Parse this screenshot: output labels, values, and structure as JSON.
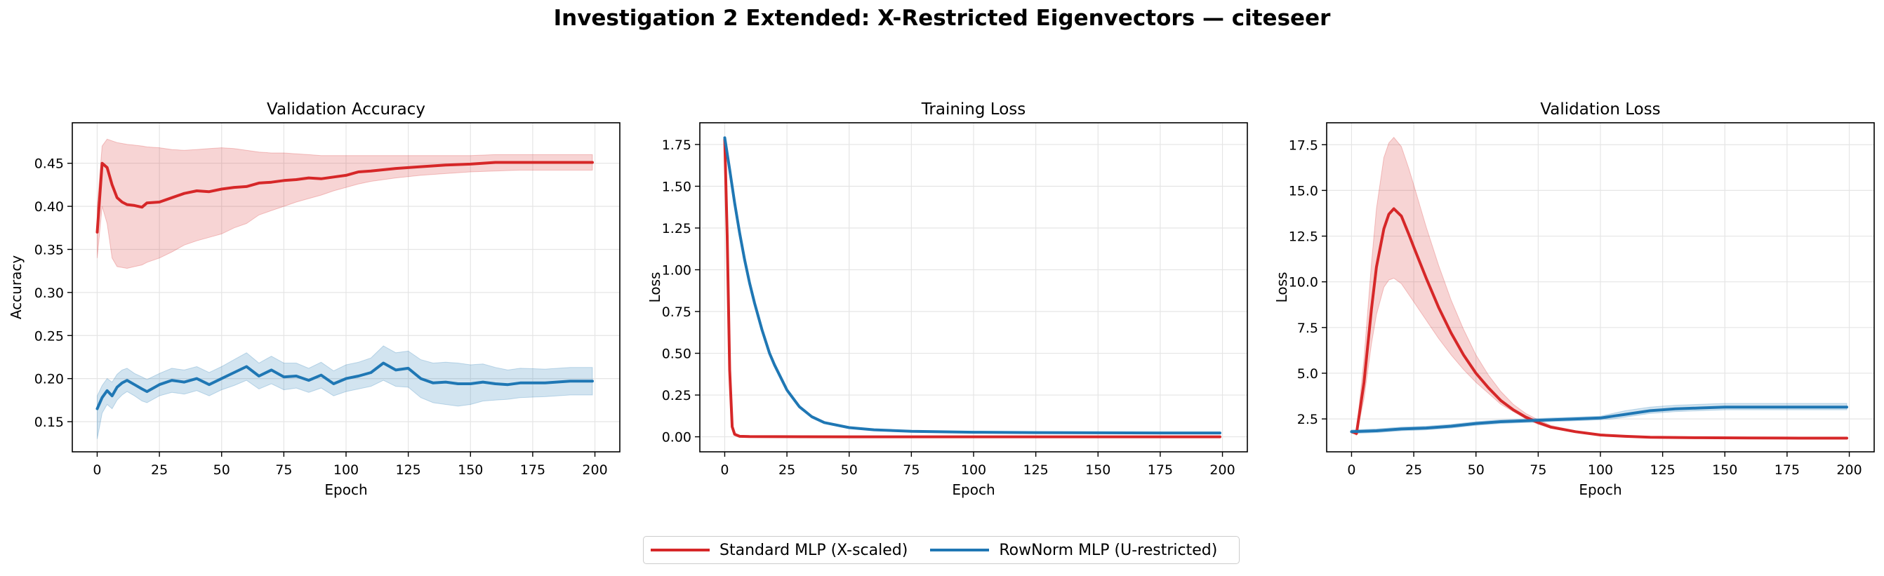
{
  "figure": {
    "suptitle": "Investigation 2 Extended: X-Restricted Eigenvectors — citeseer"
  },
  "legend": [
    {
      "name": "Standard MLP (X-scaled)",
      "color": "#d62728"
    },
    {
      "name": "RowNorm MLP (U-restricted)",
      "color": "#1f77b4"
    }
  ],
  "chart_data": [
    {
      "type": "line",
      "title": "Validation Accuracy",
      "xlabel": "Epoch",
      "ylabel": "Accuracy",
      "xlim": [
        -10,
        210
      ],
      "ylim": [
        0.115,
        0.497
      ],
      "xticks": [
        0,
        25,
        50,
        75,
        100,
        125,
        150,
        175,
        200
      ],
      "yticks": [
        0.15,
        0.2,
        0.25,
        0.3,
        0.35,
        0.4,
        0.45
      ],
      "ytick_labels": [
        "0.15",
        "0.20",
        "0.25",
        "0.30",
        "0.35",
        "0.40",
        "0.45"
      ],
      "grid": true,
      "series": [
        {
          "name": "Standard MLP (X-scaled)",
          "color": "#d62728",
          "x": [
            0,
            2,
            4,
            6,
            8,
            10,
            12,
            15,
            18,
            20,
            25,
            30,
            35,
            40,
            45,
            50,
            55,
            60,
            65,
            70,
            75,
            80,
            85,
            90,
            95,
            100,
            105,
            110,
            120,
            130,
            140,
            150,
            160,
            170,
            180,
            190,
            199
          ],
          "mean": [
            0.37,
            0.45,
            0.445,
            0.425,
            0.41,
            0.405,
            0.402,
            0.401,
            0.399,
            0.404,
            0.405,
            0.41,
            0.415,
            0.418,
            0.417,
            0.42,
            0.422,
            0.423,
            0.427,
            0.428,
            0.43,
            0.431,
            0.433,
            0.432,
            0.434,
            0.436,
            0.44,
            0.441,
            0.444,
            0.446,
            0.448,
            0.449,
            0.451,
            0.451,
            0.451,
            0.451,
            0.451
          ],
          "lower": [
            0.34,
            0.4,
            0.38,
            0.34,
            0.33,
            0.329,
            0.328,
            0.33,
            0.332,
            0.335,
            0.34,
            0.347,
            0.355,
            0.36,
            0.364,
            0.368,
            0.375,
            0.38,
            0.39,
            0.395,
            0.4,
            0.405,
            0.409,
            0.413,
            0.418,
            0.422,
            0.426,
            0.429,
            0.433,
            0.436,
            0.438,
            0.44,
            0.441,
            0.442,
            0.442,
            0.442,
            0.442
          ],
          "upper": [
            0.4,
            0.47,
            0.478,
            0.476,
            0.474,
            0.473,
            0.472,
            0.471,
            0.47,
            0.469,
            0.468,
            0.466,
            0.465,
            0.466,
            0.467,
            0.468,
            0.467,
            0.465,
            0.463,
            0.462,
            0.462,
            0.461,
            0.46,
            0.459,
            0.459,
            0.459,
            0.459,
            0.459,
            0.459,
            0.459,
            0.459,
            0.459,
            0.46,
            0.46,
            0.46,
            0.46,
            0.46
          ]
        },
        {
          "name": "RowNorm MLP (U-restricted)",
          "color": "#1f77b4",
          "x": [
            0,
            2,
            4,
            6,
            8,
            10,
            12,
            15,
            18,
            20,
            25,
            30,
            35,
            40,
            45,
            50,
            55,
            60,
            65,
            70,
            75,
            80,
            85,
            90,
            95,
            100,
            105,
            110,
            115,
            120,
            125,
            130,
            135,
            140,
            145,
            150,
            155,
            160,
            165,
            170,
            180,
            190,
            199
          ],
          "mean": [
            0.165,
            0.178,
            0.186,
            0.18,
            0.19,
            0.195,
            0.198,
            0.193,
            0.188,
            0.185,
            0.193,
            0.198,
            0.196,
            0.2,
            0.193,
            0.2,
            0.207,
            0.214,
            0.203,
            0.21,
            0.202,
            0.203,
            0.198,
            0.204,
            0.194,
            0.2,
            0.203,
            0.207,
            0.218,
            0.21,
            0.212,
            0.2,
            0.195,
            0.196,
            0.194,
            0.194,
            0.196,
            0.194,
            0.193,
            0.195,
            0.195,
            0.197,
            0.197
          ],
          "lower": [
            0.13,
            0.16,
            0.17,
            0.165,
            0.175,
            0.181,
            0.185,
            0.18,
            0.174,
            0.172,
            0.18,
            0.184,
            0.182,
            0.186,
            0.18,
            0.187,
            0.192,
            0.198,
            0.188,
            0.194,
            0.187,
            0.189,
            0.184,
            0.189,
            0.18,
            0.185,
            0.188,
            0.191,
            0.198,
            0.191,
            0.19,
            0.178,
            0.172,
            0.17,
            0.168,
            0.17,
            0.174,
            0.175,
            0.176,
            0.178,
            0.179,
            0.181,
            0.181
          ],
          "upper": [
            0.18,
            0.192,
            0.2,
            0.196,
            0.205,
            0.21,
            0.212,
            0.206,
            0.202,
            0.199,
            0.206,
            0.212,
            0.21,
            0.214,
            0.207,
            0.214,
            0.222,
            0.23,
            0.218,
            0.226,
            0.218,
            0.218,
            0.212,
            0.219,
            0.209,
            0.216,
            0.219,
            0.224,
            0.238,
            0.23,
            0.232,
            0.222,
            0.218,
            0.219,
            0.218,
            0.216,
            0.217,
            0.213,
            0.21,
            0.212,
            0.211,
            0.213,
            0.213
          ]
        }
      ]
    },
    {
      "type": "line",
      "title": "Training Loss",
      "xlabel": "Epoch",
      "ylabel": "Loss",
      "xlim": [
        -10,
        210
      ],
      "ylim": [
        -0.09,
        1.88
      ],
      "xticks": [
        0,
        25,
        50,
        75,
        100,
        125,
        150,
        175,
        200
      ],
      "yticks": [
        0.0,
        0.25,
        0.5,
        0.75,
        1.0,
        1.25,
        1.5,
        1.75
      ],
      "ytick_labels": [
        "0.00",
        "0.25",
        "0.50",
        "0.75",
        "1.00",
        "1.25",
        "1.50",
        "1.75"
      ],
      "grid": true,
      "series": [
        {
          "name": "Standard MLP (X-scaled)",
          "color": "#d62728",
          "x": [
            0,
            1,
            2,
            3,
            4,
            6,
            10,
            50,
            100,
            150,
            199
          ],
          "mean": [
            1.78,
            1.2,
            0.4,
            0.06,
            0.015,
            0.003,
            0.001,
            0.0,
            0.0,
            0.0,
            0.0
          ]
        },
        {
          "name": "RowNorm MLP (U-restricted)",
          "color": "#1f77b4",
          "x": [
            0,
            2,
            4,
            6,
            8,
            10,
            12,
            15,
            18,
            20,
            25,
            30,
            35,
            40,
            50,
            60,
            75,
            100,
            125,
            150,
            175,
            199
          ],
          "mean": [
            1.79,
            1.6,
            1.4,
            1.22,
            1.06,
            0.92,
            0.8,
            0.64,
            0.5,
            0.43,
            0.28,
            0.18,
            0.12,
            0.085,
            0.055,
            0.042,
            0.033,
            0.027,
            0.025,
            0.024,
            0.023,
            0.023
          ]
        }
      ]
    },
    {
      "type": "line",
      "title": "Validation Loss",
      "xlabel": "Epoch",
      "ylabel": "Loss",
      "xlim": [
        -10,
        210
      ],
      "ylim": [
        0.7,
        18.7
      ],
      "xticks": [
        0,
        25,
        50,
        75,
        100,
        125,
        150,
        175,
        200
      ],
      "yticks": [
        2.5,
        5.0,
        7.5,
        10.0,
        12.5,
        15.0,
        17.5
      ],
      "ytick_labels": [
        "2.5",
        "5.0",
        "7.5",
        "10.0",
        "12.5",
        "15.0",
        "17.5"
      ],
      "grid": true,
      "series": [
        {
          "name": "Standard MLP (X-scaled)",
          "color": "#d62728",
          "x": [
            0,
            2,
            5,
            8,
            10,
            13,
            15,
            17,
            20,
            23,
            25,
            30,
            35,
            40,
            45,
            50,
            55,
            60,
            65,
            70,
            75,
            80,
            90,
            100,
            110,
            120,
            140,
            160,
            180,
            199
          ],
          "mean": [
            1.8,
            1.7,
            4.5,
            8.5,
            10.8,
            12.9,
            13.7,
            14.0,
            13.6,
            12.6,
            11.9,
            10.2,
            8.6,
            7.2,
            6.0,
            5.0,
            4.2,
            3.5,
            3.0,
            2.6,
            2.3,
            2.05,
            1.8,
            1.62,
            1.55,
            1.5,
            1.47,
            1.46,
            1.45,
            1.45
          ],
          "lower": [
            1.8,
            1.6,
            3.6,
            6.6,
            8.2,
            9.7,
            10.1,
            10.2,
            9.9,
            9.3,
            8.9,
            7.9,
            6.9,
            6.0,
            5.2,
            4.5,
            3.9,
            3.3,
            2.9,
            2.5,
            2.2,
            2.0,
            1.78,
            1.6,
            1.53,
            1.48,
            1.45,
            1.44,
            1.43,
            1.43
          ],
          "upper": [
            1.8,
            1.8,
            5.8,
            11.0,
            14.0,
            16.8,
            17.6,
            17.9,
            17.4,
            16.2,
            15.3,
            13.0,
            10.9,
            9.0,
            7.4,
            6.0,
            4.9,
            4.0,
            3.3,
            2.8,
            2.45,
            2.15,
            1.85,
            1.65,
            1.58,
            1.53,
            1.5,
            1.49,
            1.48,
            1.48
          ]
        },
        {
          "name": "RowNorm MLP (U-restricted)",
          "color": "#1f77b4",
          "x": [
            0,
            10,
            20,
            30,
            40,
            50,
            60,
            70,
            80,
            90,
            100,
            105,
            110,
            115,
            120,
            125,
            130,
            140,
            150,
            160,
            170,
            180,
            190,
            199
          ],
          "mean": [
            1.8,
            1.85,
            1.95,
            2.0,
            2.1,
            2.25,
            2.35,
            2.4,
            2.45,
            2.5,
            2.55,
            2.65,
            2.75,
            2.85,
            2.95,
            3.0,
            3.05,
            3.1,
            3.15,
            3.15,
            3.15,
            3.15,
            3.15,
            3.15
          ],
          "lower": [
            1.7,
            1.75,
            1.85,
            1.9,
            2.0,
            2.15,
            2.25,
            2.3,
            2.35,
            2.4,
            2.45,
            2.5,
            2.6,
            2.7,
            2.8,
            2.85,
            2.9,
            2.95,
            3.0,
            3.0,
            3.0,
            3.0,
            3.0,
            3.0
          ],
          "upper": [
            1.9,
            1.95,
            2.05,
            2.1,
            2.2,
            2.35,
            2.45,
            2.5,
            2.55,
            2.6,
            2.65,
            2.8,
            2.95,
            3.05,
            3.15,
            3.2,
            3.25,
            3.3,
            3.35,
            3.35,
            3.35,
            3.35,
            3.35,
            3.35
          ]
        }
      ]
    }
  ]
}
